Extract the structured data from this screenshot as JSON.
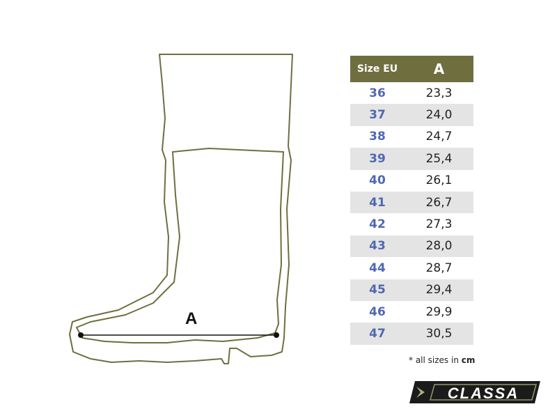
{
  "diagram": {
    "measure_label": "A",
    "outline_color": "#6f6e3f"
  },
  "table": {
    "headers": [
      "Size EU",
      "A"
    ],
    "header_color": "#6f6e3f",
    "size_color": "#4f68b0",
    "rows": [
      [
        "36",
        "23,3"
      ],
      [
        "37",
        "24,0"
      ],
      [
        "38",
        "24,7"
      ],
      [
        "39",
        "25,4"
      ],
      [
        "40",
        "26,1"
      ],
      [
        "41",
        "26,7"
      ],
      [
        "42",
        "27,3"
      ],
      [
        "43",
        "28,0"
      ],
      [
        "44",
        "28,7"
      ],
      [
        "45",
        "29,4"
      ],
      [
        "46",
        "29,9"
      ],
      [
        "47",
        "30,5"
      ]
    ]
  },
  "note": {
    "prefix": "* all sizes in ",
    "unit": "cm"
  },
  "logo": {
    "text": "CLASSA"
  }
}
